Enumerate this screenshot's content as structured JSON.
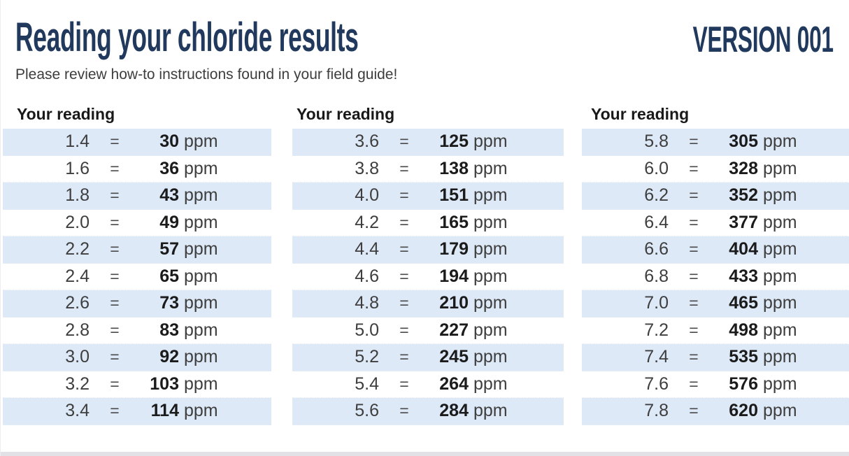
{
  "header": {
    "title": "Reading your chloride results",
    "version_label": "VERSION 001",
    "subtitle": "Please review how-to instructions found in your field guide!"
  },
  "tables": {
    "header_label": "Your reading",
    "equals": "=",
    "unit": "ppm",
    "columns": [
      {
        "rows": [
          {
            "reading": "1.4",
            "value": "30"
          },
          {
            "reading": "1.6",
            "value": "36"
          },
          {
            "reading": "1.8",
            "value": "43"
          },
          {
            "reading": "2.0",
            "value": "49"
          },
          {
            "reading": "2.2",
            "value": "57"
          },
          {
            "reading": "2.4",
            "value": "65"
          },
          {
            "reading": "2.6",
            "value": "73"
          },
          {
            "reading": "2.8",
            "value": "83"
          },
          {
            "reading": "3.0",
            "value": "92"
          },
          {
            "reading": "3.2",
            "value": "103"
          },
          {
            "reading": "3.4",
            "value": "114"
          }
        ]
      },
      {
        "rows": [
          {
            "reading": "3.6",
            "value": "125"
          },
          {
            "reading": "3.8",
            "value": "138"
          },
          {
            "reading": "4.0",
            "value": "151"
          },
          {
            "reading": "4.2",
            "value": "165"
          },
          {
            "reading": "4.4",
            "value": "179"
          },
          {
            "reading": "4.6",
            "value": "194"
          },
          {
            "reading": "4.8",
            "value": "210"
          },
          {
            "reading": "5.0",
            "value": "227"
          },
          {
            "reading": "5.2",
            "value": "245"
          },
          {
            "reading": "5.4",
            "value": "264"
          },
          {
            "reading": "5.6",
            "value": "284"
          }
        ]
      },
      {
        "rows": [
          {
            "reading": "5.8",
            "value": "305"
          },
          {
            "reading": "6.0",
            "value": "328"
          },
          {
            "reading": "6.2",
            "value": "352"
          },
          {
            "reading": "6.4",
            "value": "377"
          },
          {
            "reading": "6.6",
            "value": "404"
          },
          {
            "reading": "6.8",
            "value": "433"
          },
          {
            "reading": "7.0",
            "value": "465"
          },
          {
            "reading": "7.2",
            "value": "498"
          },
          {
            "reading": "7.4",
            "value": "535"
          },
          {
            "reading": "7.6",
            "value": "576"
          },
          {
            "reading": "7.8",
            "value": "620"
          }
        ]
      }
    ]
  },
  "colors": {
    "accent_navy": "#20395c",
    "row_stripe_blue": "#dde9f7",
    "body_text": "#3d3d3d",
    "bold_value_text": "#1b1b1b",
    "bottom_strip_gray": "#e2e2e6"
  }
}
